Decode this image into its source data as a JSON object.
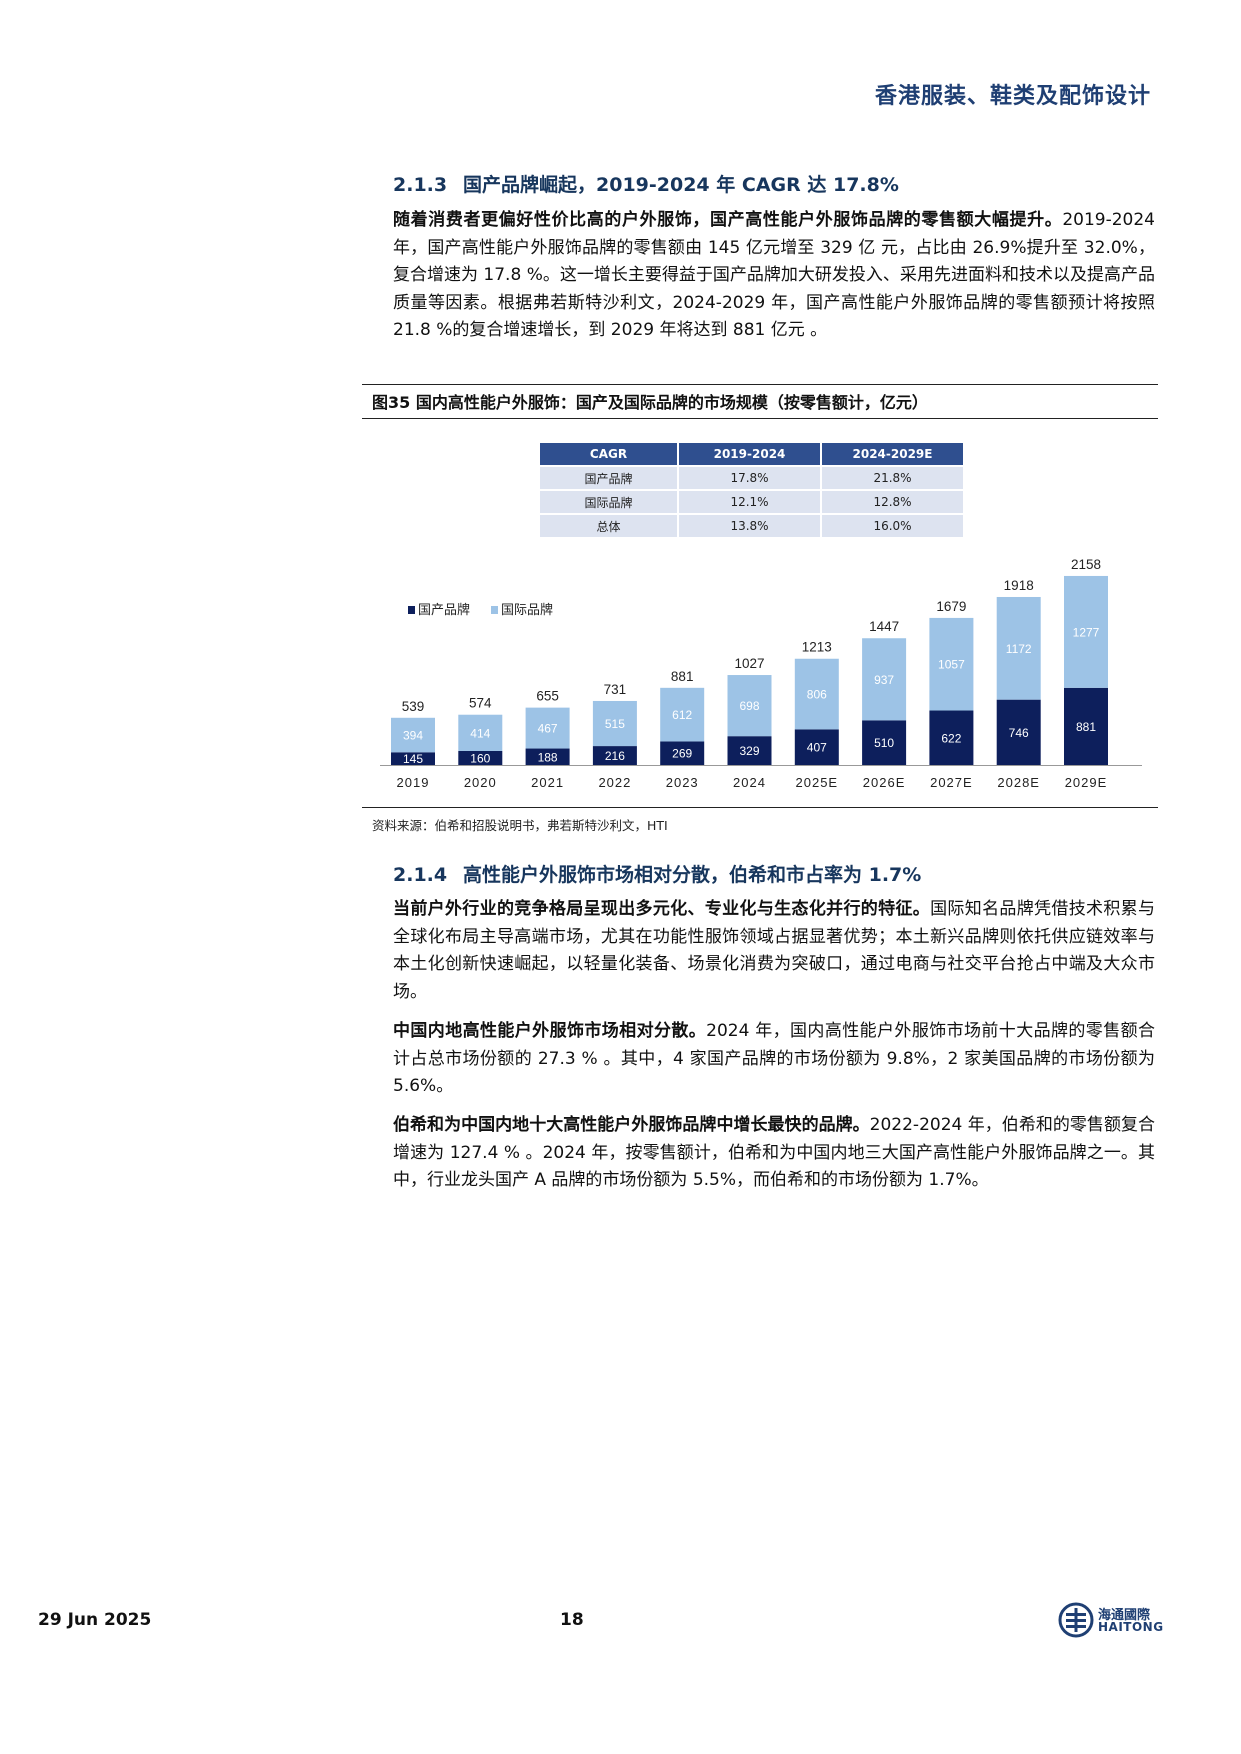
{
  "header": {
    "title": "香港服装、鞋类及配饰设计"
  },
  "section_213": {
    "number": "2.1.3",
    "title": "国产品牌崛起，2019-2024 年 CAGR 达 17.8%",
    "para_bold": "随着消费者更偏好性价比高的户外服饰，国产高性能户外服饰品牌的零售额大幅提升。",
    "para_rest": "2019-2024 年，国产高性能户外服饰品牌的零售额由 145 亿元增至 329 亿 元，占比由 26.9%提升至 32.0%，复合增速为 17.8 %。这一增长主要得益于国产品牌加大研发投入、采用先进面料和技术以及提高产品质量等因素。根据弗若斯特沙利文，2024-2029 年，国产高性能户外服饰品牌的零售额预计将按照 21.8 %的复合增速增长，到 2029 年将达到 881 亿元 。"
  },
  "figure": {
    "title": "图35 国内高性能户外服饰：国产及国际品牌的市场规模（按零售额计，亿元）",
    "source": "资料来源：伯希和招股说明书，弗若斯特沙利文，HTI"
  },
  "cagr_table": {
    "headers": [
      "CAGR",
      "2019-2024",
      "2024-2029E"
    ],
    "rows": [
      [
        "国产品牌",
        "17.8%",
        "21.8%"
      ],
      [
        "国际品牌",
        "12.1%",
        "12.8%"
      ],
      [
        "总体",
        "13.8%",
        "16.0%"
      ]
    ]
  },
  "chart_data": {
    "type": "bar",
    "stacked": true,
    "categories": [
      "2019",
      "2020",
      "2021",
      "2022",
      "2023",
      "2024",
      "2025E",
      "2026E",
      "2027E",
      "2028E",
      "2029E"
    ],
    "series": [
      {
        "name": "国产品牌",
        "color": "#0d1f5c",
        "values": [
          145,
          160,
          188,
          216,
          269,
          329,
          407,
          510,
          622,
          746,
          881
        ]
      },
      {
        "name": "国际品牌",
        "color": "#9dc3e6",
        "values": [
          394,
          414,
          467,
          515,
          612,
          698,
          806,
          937,
          1057,
          1172,
          1277
        ]
      }
    ],
    "totals": [
      539,
      574,
      655,
      731,
      881,
      1027,
      1213,
      1447,
      1679,
      1918,
      2158
    ],
    "legend_position": "top-left"
  },
  "section_214": {
    "number": "2.1.4",
    "title": "高性能户外服饰市场相对分散，伯希和市占率为 1.7%",
    "p1_bold": "当前户外行业的竞争格局呈现出多元化、专业化与生态化并行的特征。",
    "p1_rest": "国际知名品牌凭借技术积累与全球化布局主导高端市场，尤其在功能性服饰领域占据显著优势；本土新兴品牌则依托供应链效率与本土化创新快速崛起，以轻量化装备、场景化消费为突破口，通过电商与社交平台抢占中端及大众市场。",
    "p2_bold": "中国内地高性能户外服饰市场相对分散。",
    "p2_rest": "2024 年，国内高性能户外服饰市场前十大品牌的零售额合计占总市场份额的 27.3 % 。其中，4 家国产品牌的市场份额为 9.8%，2 家美国品牌的市场份额为 5.6%。",
    "p3_bold": "伯希和为中国内地十大高性能户外服饰品牌中增长最快的品牌。",
    "p3_rest": "2022-2024 年，伯希和的零售额复合增速为 127.4 % 。2024 年，按零售额计，伯希和为中国内地三大国产高性能户外服饰品牌之一。其中，行业龙头国产 A 品牌的市场份额为 5.5%，而伯希和的市场份额为 1.7%。"
  },
  "footer": {
    "date": "29 Jun 2025",
    "page": "18",
    "logo_cn": "海通國際",
    "logo_en": "HAITONG"
  }
}
